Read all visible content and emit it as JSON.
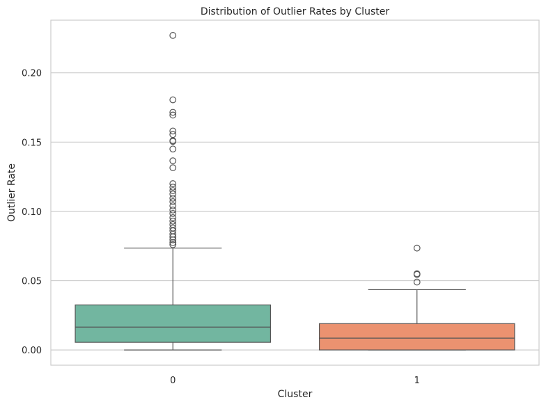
{
  "chart_data": {
    "type": "box",
    "title": "Distribution of Outlier Rates by Cluster",
    "xlabel": "Cluster",
    "ylabel": "Outlier Rate",
    "ylim": [
      -0.011,
      0.238
    ],
    "yticks": [
      0.0,
      0.05,
      0.1,
      0.15,
      0.2
    ],
    "ytick_labels": [
      "0.00",
      "0.05",
      "0.10",
      "0.15",
      "0.20"
    ],
    "grid": "horizontal",
    "categories": [
      "0",
      "1"
    ],
    "colors": [
      "#72b6a0",
      "#eb9270"
    ],
    "edge_color": "#555555",
    "boxes": [
      {
        "category": "0",
        "whisker_low": 0.0,
        "q1": 0.0055,
        "median": 0.0165,
        "q3": 0.0325,
        "whisker_high": 0.0735,
        "outliers": [
          0.076,
          0.0775,
          0.0795,
          0.0815,
          0.0835,
          0.086,
          0.088,
          0.0905,
          0.093,
          0.0955,
          0.0985,
          0.101,
          0.104,
          0.107,
          0.1095,
          0.1125,
          0.115,
          0.1175,
          0.12,
          0.1315,
          0.1365,
          0.145,
          0.1505,
          0.151,
          0.1555,
          0.158,
          0.1695,
          0.1715,
          0.1805,
          0.227
        ]
      },
      {
        "category": "1",
        "whisker_low": 0.0,
        "q1": 0.0,
        "median": 0.0085,
        "q3": 0.019,
        "whisker_high": 0.0435,
        "outliers": [
          0.049,
          0.0545,
          0.055,
          0.0735
        ]
      }
    ]
  }
}
